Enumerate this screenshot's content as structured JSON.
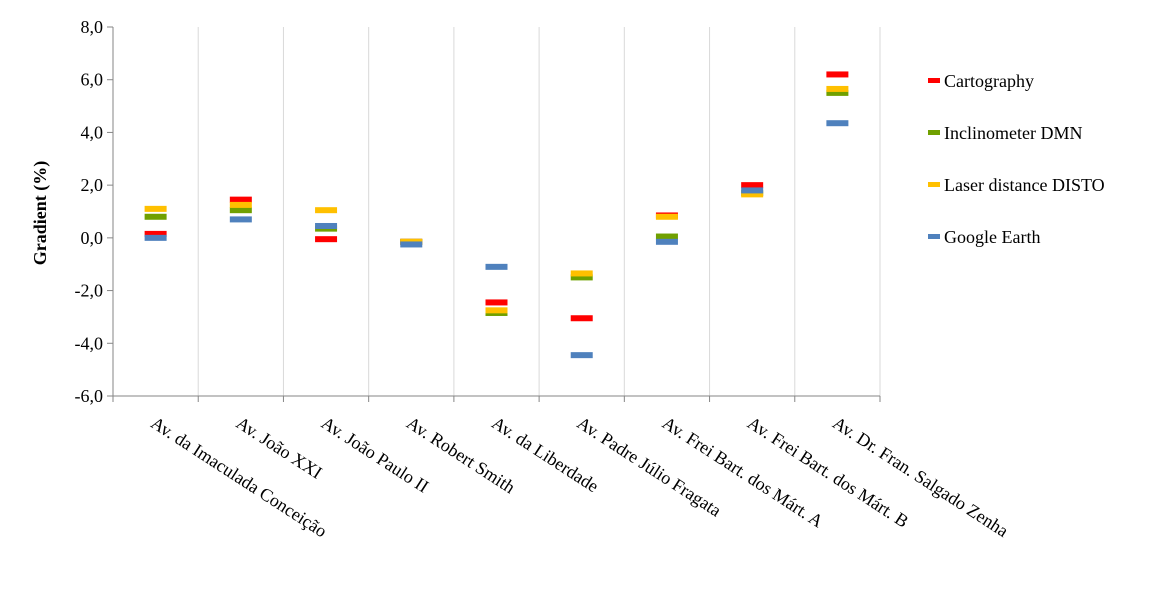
{
  "chart_data": {
    "type": "scatter",
    "title": "",
    "xlabel": "",
    "ylabel": "Gradient (%)",
    "ylim": [
      -6.0,
      8.0
    ],
    "y_ticks": [
      "8,0",
      "6,0",
      "4,0",
      "2,0",
      "0,0",
      "-2,0",
      "-4,0",
      "-6,0"
    ],
    "y_tick_values": [
      8,
      6,
      4,
      2,
      0,
      -2,
      -4,
      -6
    ],
    "grid": "vertical",
    "legend_position": "right",
    "marker": "dash",
    "categories": [
      "Av. da Imaculada Conceição",
      "Av. João XXI",
      "Av. João Paulo II",
      "Av. Robert Smith",
      "Av. da Liberdade",
      "Av. Padre Júlio Fragata",
      "Av. Frei Bart. dos Márt. A",
      "Av. Frei Bart. dos Márt. B",
      "Av. Dr. Fran. Salgado Zenha"
    ],
    "series": [
      {
        "name": "Cartography",
        "color": "#ff0000",
        "values": [
          0.15,
          1.45,
          -0.05,
          -0.15,
          -2.45,
          -3.05,
          0.85,
          2.0,
          6.2
        ]
      },
      {
        "name": "Inclinometer DMN",
        "color": "#70a000",
        "values": [
          0.8,
          1.05,
          0.35,
          -0.15,
          -2.85,
          -1.5,
          0.05,
          1.7,
          5.5
        ]
      },
      {
        "name": "Laser distance DISTO",
        "color": "#ffc000",
        "values": [
          1.1,
          1.25,
          1.05,
          -0.15,
          -2.75,
          -1.35,
          0.8,
          1.65,
          5.65
        ]
      },
      {
        "name": "Google Earth",
        "color": "#4f81bd",
        "values": [
          0.0,
          0.7,
          0.45,
          -0.25,
          -1.1,
          -4.45,
          -0.15,
          1.8,
          4.35
        ]
      }
    ]
  }
}
